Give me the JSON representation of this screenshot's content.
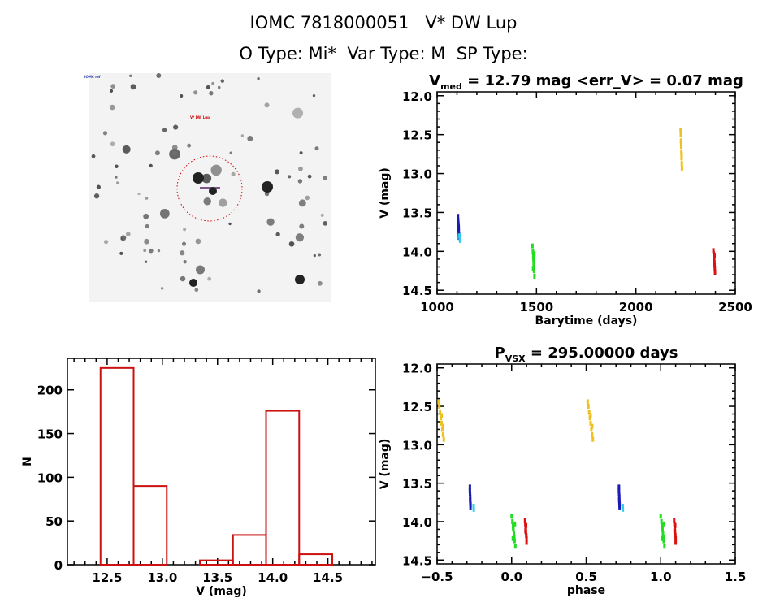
{
  "header": {
    "title": "IOMC 7818000051   V* DW Lup",
    "subtitle": "O Type: Mi*  Var Type: M  SP Type:"
  },
  "thumbnail": {
    "label_top_left": "IOMC ref",
    "target_label": "V* DW Lup",
    "marker_color": "#cc0000"
  },
  "chart_data": [
    {
      "type": "scatter",
      "title_main": "V",
      "title_sub": "med",
      "title_rest": " = 12.79 mag <err_V> = 0.07 mag",
      "xlabel": "Barytime (days)",
      "ylabel": "V (mag)",
      "xlim": [
        1000,
        2500
      ],
      "ylim": [
        14.55,
        11.95
      ],
      "y_inverted": true,
      "xticks": [
        "1000",
        "1500",
        "2000",
        "2500"
      ],
      "yticks": [
        "12.0",
        "12.5",
        "13.0",
        "13.5",
        "14.0",
        "14.5"
      ],
      "series": [
        {
          "color": "#1a1ab4",
          "x": [
            1105,
            1106,
            1107,
            1108,
            1108,
            1109,
            1110,
            1110,
            1107,
            1109
          ],
          "y": [
            13.55,
            13.6,
            13.64,
            13.68,
            13.72,
            13.75,
            13.78,
            13.82,
            13.66,
            13.7
          ]
        },
        {
          "color": "#33ccee",
          "x": [
            1113,
            1114,
            1115,
            1116
          ],
          "y": [
            13.8,
            13.82,
            13.84,
            13.86
          ]
        },
        {
          "color": "#22dd22",
          "x": [
            1480,
            1482,
            1484,
            1485,
            1486,
            1487,
            1488,
            1490,
            1484,
            1486,
            1483,
            1489
          ],
          "y": [
            13.93,
            14.0,
            14.05,
            14.1,
            14.15,
            14.2,
            14.25,
            14.32,
            14.08,
            14.18,
            14.22,
            14.03
          ]
        },
        {
          "color": "#f0c020",
          "x": [
            2225,
            2226,
            2227,
            2228,
            2229,
            2230,
            2231,
            2232,
            2228,
            2230
          ],
          "y": [
            12.44,
            12.5,
            12.58,
            12.65,
            12.72,
            12.8,
            12.87,
            12.93,
            12.62,
            12.76
          ]
        },
        {
          "color": "#dd1111",
          "x": [
            2390,
            2392,
            2393,
            2394,
            2395,
            2396,
            2397,
            2398,
            2393,
            2396
          ],
          "y": [
            13.99,
            14.03,
            14.07,
            14.1,
            14.14,
            14.18,
            14.22,
            14.27,
            14.12,
            14.05
          ]
        }
      ]
    },
    {
      "type": "scatter",
      "title_main": "P",
      "title_sub": "VSX",
      "title_rest": " = 295.00000 days",
      "xlabel": "phase",
      "ylabel": "V (mag)",
      "xlim": [
        -0.5,
        1.5
      ],
      "ylim": [
        14.55,
        11.95
      ],
      "y_inverted": true,
      "xticks": [
        "-0.5",
        "0.0",
        "0.5",
        "1.0",
        "1.5"
      ],
      "yticks": [
        "12.0",
        "12.5",
        "13.0",
        "13.5",
        "14.0",
        "14.5"
      ],
      "series": [
        {
          "color": "#f0c020",
          "x": [
            -0.49,
            -0.485,
            -0.48,
            -0.475,
            -0.47,
            -0.465,
            -0.46,
            -0.455,
            -0.47,
            -0.46,
            0.51,
            0.515,
            0.52,
            0.525,
            0.53,
            0.535,
            0.54,
            0.545,
            0.53,
            0.54
          ],
          "y": [
            12.44,
            12.5,
            12.58,
            12.65,
            12.72,
            12.8,
            12.87,
            12.93,
            12.62,
            12.76,
            12.44,
            12.5,
            12.58,
            12.65,
            12.72,
            12.8,
            12.87,
            12.93,
            12.62,
            12.76
          ]
        },
        {
          "color": "#1a1ab4",
          "x": [
            -0.28,
            -0.28,
            -0.279,
            -0.278,
            -0.278,
            -0.277,
            -0.276,
            -0.276,
            0.72,
            0.72,
            0.721,
            0.722,
            0.722,
            0.723,
            0.724,
            0.724
          ],
          "y": [
            13.55,
            13.6,
            13.64,
            13.68,
            13.72,
            13.75,
            13.78,
            13.82,
            13.55,
            13.6,
            13.64,
            13.68,
            13.72,
            13.75,
            13.78,
            13.82
          ]
        },
        {
          "color": "#33ccee",
          "x": [
            -0.255,
            -0.254,
            0.745,
            0.746
          ],
          "y": [
            13.8,
            13.84,
            13.8,
            13.84
          ]
        },
        {
          "color": "#22dd22",
          "x": [
            0.0,
            0.005,
            0.01,
            0.012,
            0.015,
            0.018,
            0.02,
            0.025,
            0.01,
            0.015,
            0.008,
            0.022,
            1.0,
            1.005,
            1.01,
            1.012,
            1.015,
            1.018,
            1.02,
            1.025,
            1.01,
            1.015,
            1.008,
            1.022
          ],
          "y": [
            13.93,
            14.0,
            14.05,
            14.1,
            14.15,
            14.2,
            14.25,
            14.32,
            14.08,
            14.18,
            14.22,
            14.03,
            13.93,
            14.0,
            14.05,
            14.1,
            14.15,
            14.2,
            14.25,
            14.32,
            14.08,
            14.18,
            14.22,
            14.03
          ]
        },
        {
          "color": "#dd1111",
          "x": [
            0.09,
            0.092,
            0.094,
            0.095,
            0.096,
            0.098,
            0.1,
            0.1,
            0.093,
            0.097,
            1.09,
            1.092,
            1.094,
            1.095,
            1.096,
            1.098,
            1.1,
            1.1,
            1.093,
            1.097
          ],
          "y": [
            13.99,
            14.03,
            14.07,
            14.1,
            14.14,
            14.18,
            14.22,
            14.27,
            14.12,
            14.05,
            13.99,
            14.03,
            14.07,
            14.1,
            14.14,
            14.18,
            14.22,
            14.27,
            14.12,
            14.05
          ]
        }
      ]
    },
    {
      "type": "bar",
      "xlabel": "V (mag)",
      "ylabel": "N",
      "xlim": [
        12.14,
        14.93
      ],
      "ylim": [
        0,
        236
      ],
      "xticks": [
        "12.5",
        "13.0",
        "13.5",
        "14.0",
        "14.5"
      ],
      "yticks": [
        "0",
        "50",
        "100",
        "150",
        "200"
      ],
      "bin_edges": [
        12.44,
        12.74,
        13.04,
        13.34,
        13.64,
        13.94,
        14.24,
        14.54
      ],
      "values": [
        225,
        90,
        0,
        5,
        34,
        176,
        12
      ],
      "color": "#cc1111"
    }
  ]
}
